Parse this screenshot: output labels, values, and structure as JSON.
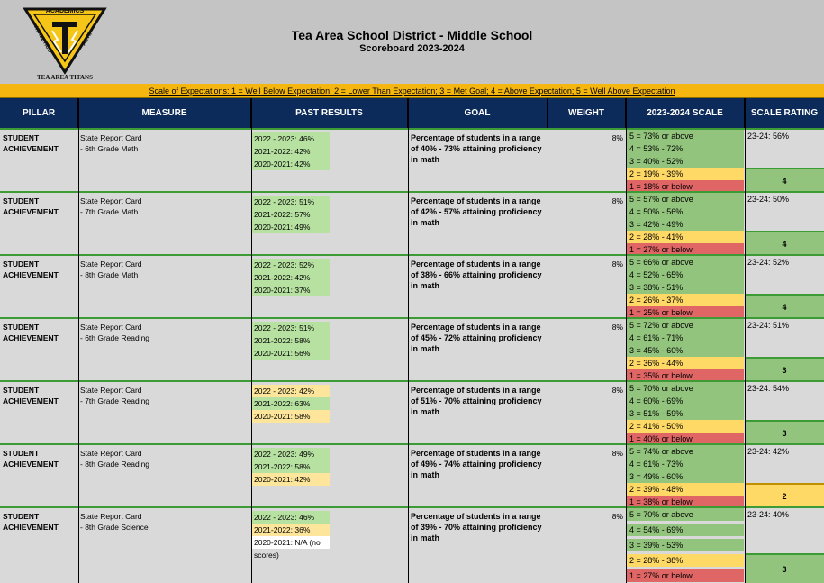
{
  "header": {
    "title": "Tea Area School District - Middle School",
    "subtitle": "Scoreboard 2023-2024",
    "logo": {
      "top_text": "ACADEMICS",
      "left_text": "ATHLETICS",
      "right_text": "ARTS",
      "bottom_text": "TEA AREA TITANS",
      "colors": {
        "gold": "#f5c518",
        "black": "#111111"
      }
    }
  },
  "scale_bar": {
    "lead": "Scale of Expectations:",
    "text": " 1 = Well Below Expectation; 2 = Lower Than Expectation; 3 = Met Goal; 4 = Above Expectation; 5 = Well Above Expectation"
  },
  "columns": [
    "PILLAR",
    "MEASURE",
    "PAST RESULTS",
    "GOAL",
    "WEIGHT",
    "2023-2024 SCALE",
    "SCALE RATING"
  ],
  "colors": {
    "header_navy": "#0c2a5a",
    "scale_gold": "#f5b60f",
    "past_green": "#b7e1a1",
    "past_yellow": "#fde69b",
    "scale_green": "#93c47d",
    "scale_yellow": "#ffd966",
    "scale_red": "#e06666",
    "rating_green": "#93c47d",
    "rating_yellow": "#ffd966"
  },
  "rows": [
    {
      "pillar": "STUDENT ACHIEVEMENT",
      "measure_1": "State Report Card",
      "measure_2": "- 6th Grade Math",
      "past": [
        {
          "text": "2022 - 2023: 46%",
          "color": "green"
        },
        {
          "text": "2021-2022: 42%",
          "color": "green"
        },
        {
          "text": "2020-2021: 42%",
          "color": "green"
        }
      ],
      "goal": "Percentage of students in a range of 40% - 73% attaining proficiency in math",
      "weight": "8%",
      "scale": [
        "5 = 73% or above",
        "4 = 53% - 72%",
        "3 = 40% - 52%",
        "2 = 19% - 39%",
        "1 = 18% or below"
      ],
      "rating_text": "23-24: 56%",
      "rating": "4",
      "rating_color": "green"
    },
    {
      "pillar": "STUDENT ACHIEVEMENT",
      "measure_1": "State Report Card",
      "measure_2": "- 7th Grade Math",
      "past": [
        {
          "text": "2022 - 2023: 51%",
          "color": "green"
        },
        {
          "text": "2021-2022: 57%",
          "color": "green"
        },
        {
          "text": "2020-2021: 49%",
          "color": "green"
        }
      ],
      "goal": "Percentage of students in a range of 42% - 57% attaining proficiency in math",
      "weight": "8%",
      "scale": [
        "5 = 57% or above",
        "4 = 50% - 56%",
        "3 = 42% - 49%",
        "2 = 28% - 41%",
        "1 = 27% or below"
      ],
      "rating_text": "23-24: 50%",
      "rating": "4",
      "rating_color": "green"
    },
    {
      "pillar": "STUDENT ACHIEVEMENT",
      "measure_1": "State Report Card",
      "measure_2": "- 8th Grade Math",
      "past": [
        {
          "text": "2022 - 2023: 52%",
          "color": "green"
        },
        {
          "text": "2021-2022: 42%",
          "color": "green"
        },
        {
          "text": "2020-2021: 37%",
          "color": "green"
        }
      ],
      "goal": "Percentage of students in a range of 38% - 66% attaining proficiency in math",
      "weight": "8%",
      "scale": [
        "5 = 66% or above",
        "4 = 52% - 65%",
        "3 = 38% - 51%",
        "2 = 26% - 37%",
        "1 = 25% or below"
      ],
      "rating_text": "23-24: 52%",
      "rating": "4",
      "rating_color": "green"
    },
    {
      "pillar": "STUDENT ACHIEVEMENT",
      "measure_1": "State Report Card",
      "measure_2": "- 6th Grade Reading",
      "past": [
        {
          "text": "2022 - 2023: 51%",
          "color": "green"
        },
        {
          "text": "2021-2022: 58%",
          "color": "green"
        },
        {
          "text": "2020-2021: 56%",
          "color": "green"
        }
      ],
      "goal": "Percentage of students in a range of 45% - 72% attaining proficiency in math",
      "weight": "8%",
      "scale": [
        "5 = 72% or above",
        "4 = 61% - 71%",
        "3 = 45% - 60%",
        "2 = 36% - 44%",
        "1 = 35% or below"
      ],
      "rating_text": "23-24: 51%",
      "rating": "3",
      "rating_color": "green"
    },
    {
      "pillar": "STUDENT ACHIEVEMENT",
      "measure_1": "State Report Card",
      "measure_2": "- 7th Grade Reading",
      "past": [
        {
          "text": "2022 - 2023: 42%",
          "color": "yellow"
        },
        {
          "text": "2021-2022: 63%",
          "color": "green"
        },
        {
          "text": "2020-2021: 58%",
          "color": "yellow"
        }
      ],
      "goal": "Percentage of students in a range of 51% - 70% attaining proficiency in math",
      "weight": "8%",
      "scale": [
        "5 = 70% or above",
        "4 = 60% - 69%",
        "3 = 51% - 59%",
        "2 = 41% - 50%",
        "1 = 40% or below"
      ],
      "rating_text": "23-24: 54%",
      "rating": "3",
      "rating_color": "green"
    },
    {
      "pillar": "STUDENT ACHIEVEMENT",
      "measure_1": "State Report Card",
      "measure_2": "- 8th Grade Reading",
      "past": [
        {
          "text": "2022 - 2023: 49%",
          "color": "green"
        },
        {
          "text": "2021-2022: 58%",
          "color": "green"
        },
        {
          "text": "2020-2021: 42%",
          "color": "yellow"
        }
      ],
      "goal": "Percentage of students in a range of 49% - 74% attaining proficiency in math",
      "weight": "8%",
      "scale": [
        "5 = 74% or above",
        "4 = 61% - 73%",
        "3 = 49% - 60%",
        "2 = 39% - 48%",
        "1 = 38% or below"
      ],
      "rating_text": "23-24: 42%",
      "rating": "2",
      "rating_color": "yellow"
    },
    {
      "pillar": "STUDENT ACHIEVEMENT",
      "measure_1": "State Report Card",
      "measure_2": "- 8th Grade Science",
      "past": [
        {
          "text": "2022 - 2023: 46%",
          "color": "green"
        },
        {
          "text": "2021-2022: 36%",
          "color": "yellow"
        },
        {
          "text": "2020-2021: N/A (no scores)",
          "color": "white"
        }
      ],
      "goal": "Percentage of students in a range of 39% - 70% attaining proficiency in math",
      "weight": "8%",
      "scale": [
        "5 = 70% or above",
        "4 = 54% - 69%",
        "3 = 39% - 53%",
        "2 = 28% - 38%",
        "1 = 27% or below"
      ],
      "rating_text": "23-24: 40%",
      "rating": "3",
      "rating_color": "green"
    }
  ]
}
